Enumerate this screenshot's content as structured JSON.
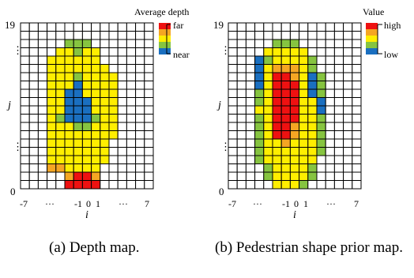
{
  "colors": {
    "red": "#ee1111",
    "orange": "#f5a623",
    "yellow": "#ffee00",
    "green": "#86c440",
    "blue": "#1a6fc0",
    "white": "#ffffff",
    "grid": "#000000"
  },
  "code_map": {
    "0": "white",
    "1": "yellow",
    "2": "green",
    "3": "blue",
    "4": "orange",
    "5": "red"
  },
  "panels": [
    {
      "id": "a",
      "legend": {
        "title": "Average depth",
        "top_label": "far",
        "bottom_label": "near",
        "order": [
          "red",
          "orange",
          "yellow",
          "green",
          "blue"
        ]
      },
      "y_ticks": {
        "top": "19",
        "bottom": "0",
        "axis": "j"
      },
      "x_ticks": [
        "-7",
        "···",
        "-1",
        "0",
        "1",
        "···",
        "7"
      ],
      "x_axis": "i",
      "caption": "(a) Depth map.",
      "rows": [
        "000000000000000",
        "000000000000000",
        "000002220000000",
        "000011211000000",
        "000111111000000",
        "000111111100000",
        "000111211110000",
        "000111311110000",
        "000113311110000",
        "000113331110000",
        "000113331110000",
        "000123332110000",
        "000111221110000",
        "000111111110000",
        "000111111100000",
        "000111111100000",
        "000111111100000",
        "000441111000000",
        "000004554000000",
        "000005555000000"
      ]
    },
    {
      "id": "b",
      "legend": {
        "title": "Value",
        "top_label": "high",
        "bottom_label": "low",
        "order": [
          "red",
          "orange",
          "yellow",
          "green",
          "blue"
        ]
      },
      "y_ticks": {
        "top": "19",
        "bottom": "0",
        "axis": "j"
      },
      "x_ticks": [
        "-7",
        "···",
        "-1",
        "0",
        "1",
        "···",
        "7"
      ],
      "x_axis": "i",
      "caption": "(b) Pedestrian shape prior map.",
      "rows": [
        "000000000000000",
        "000000000000000",
        "000002220000000",
        "000011111000000",
        "000321111200000",
        "000314441200000",
        "000315541320000",
        "000315551320000",
        "000215551320000",
        "000215551130000",
        "000115551130000",
        "000215551120000",
        "000215541120000",
        "000215541120000",
        "000211411120000",
        "000211111120000",
        "000211111100000",
        "000021111200000",
        "000021111200000",
        "000001112000000"
      ]
    }
  ]
}
